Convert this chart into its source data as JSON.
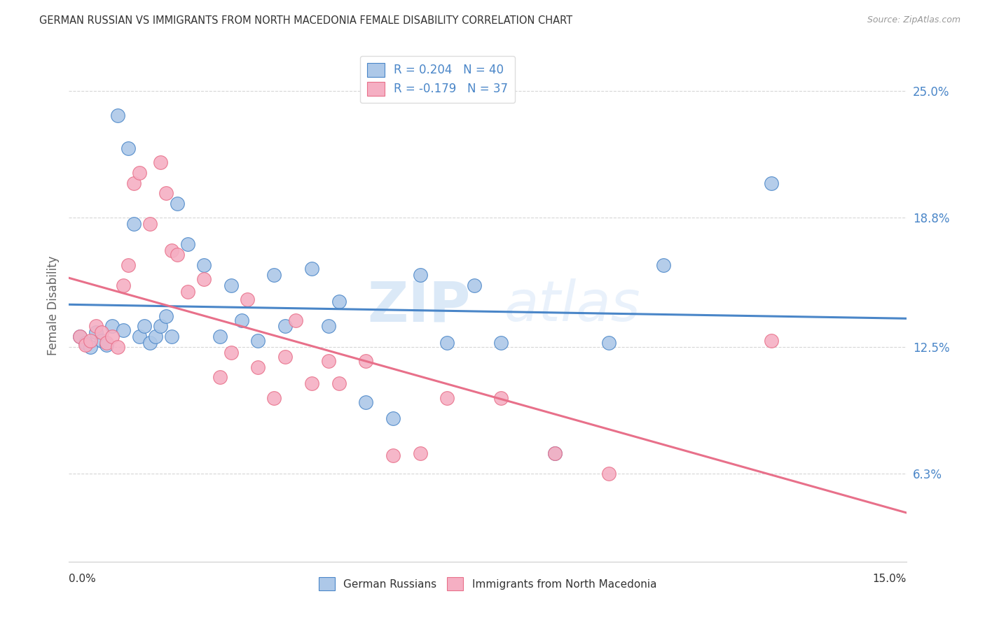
{
  "title": "GERMAN RUSSIAN VS IMMIGRANTS FROM NORTH MACEDONIA FEMALE DISABILITY CORRELATION CHART",
  "source": "Source: ZipAtlas.com",
  "ylabel": "Female Disability",
  "yticks": [
    0.063,
    0.125,
    0.188,
    0.25
  ],
  "ytick_labels": [
    "6.3%",
    "12.5%",
    "18.8%",
    "25.0%"
  ],
  "xlim": [
    0.0,
    0.155
  ],
  "ylim": [
    0.02,
    0.27
  ],
  "blue_R": 0.204,
  "blue_N": 40,
  "pink_R": -0.179,
  "pink_N": 37,
  "blue_color": "#adc8e8",
  "pink_color": "#f5afc3",
  "blue_line_color": "#4a86c8",
  "pink_line_color": "#e8708a",
  "blue_label": "German Russians",
  "pink_label": "Immigrants from North Macedonia",
  "blue_x": [
    0.002,
    0.003,
    0.004,
    0.005,
    0.006,
    0.007,
    0.008,
    0.009,
    0.01,
    0.011,
    0.012,
    0.013,
    0.014,
    0.015,
    0.016,
    0.017,
    0.018,
    0.019,
    0.02,
    0.022,
    0.025,
    0.028,
    0.03,
    0.032,
    0.035,
    0.038,
    0.04,
    0.045,
    0.048,
    0.05,
    0.055,
    0.06,
    0.065,
    0.07,
    0.075,
    0.08,
    0.09,
    0.1,
    0.11,
    0.13
  ],
  "blue_y": [
    0.13,
    0.127,
    0.125,
    0.132,
    0.128,
    0.126,
    0.135,
    0.238,
    0.133,
    0.222,
    0.185,
    0.13,
    0.135,
    0.127,
    0.13,
    0.135,
    0.14,
    0.13,
    0.195,
    0.175,
    0.165,
    0.13,
    0.155,
    0.138,
    0.128,
    0.16,
    0.135,
    0.163,
    0.135,
    0.147,
    0.098,
    0.09,
    0.16,
    0.127,
    0.155,
    0.127,
    0.073,
    0.127,
    0.165,
    0.205
  ],
  "pink_x": [
    0.002,
    0.003,
    0.004,
    0.005,
    0.006,
    0.007,
    0.008,
    0.009,
    0.01,
    0.011,
    0.012,
    0.013,
    0.015,
    0.017,
    0.018,
    0.019,
    0.02,
    0.022,
    0.025,
    0.028,
    0.03,
    0.033,
    0.035,
    0.038,
    0.04,
    0.042,
    0.045,
    0.048,
    0.05,
    0.055,
    0.06,
    0.065,
    0.07,
    0.08,
    0.09,
    0.1,
    0.13
  ],
  "pink_y": [
    0.13,
    0.126,
    0.128,
    0.135,
    0.132,
    0.127,
    0.13,
    0.125,
    0.155,
    0.165,
    0.205,
    0.21,
    0.185,
    0.215,
    0.2,
    0.172,
    0.17,
    0.152,
    0.158,
    0.11,
    0.122,
    0.148,
    0.115,
    0.1,
    0.12,
    0.138,
    0.107,
    0.118,
    0.107,
    0.118,
    0.072,
    0.073,
    0.1,
    0.1,
    0.073,
    0.063,
    0.128
  ],
  "background_color": "#ffffff",
  "grid_color": "#cccccc",
  "watermark_zip": "ZIP",
  "watermark_atlas": "atlas"
}
